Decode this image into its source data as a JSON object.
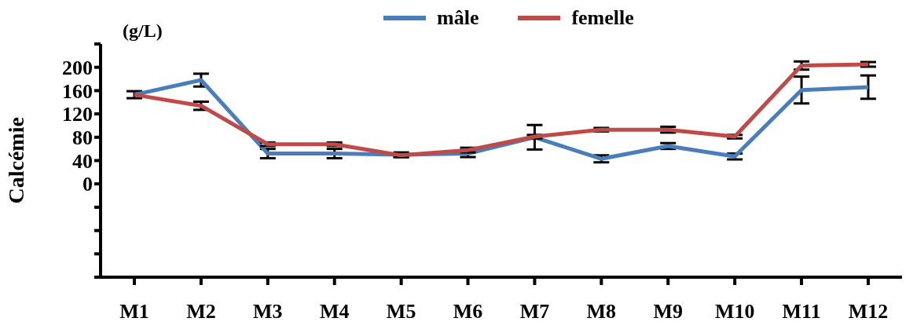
{
  "chart_data": {
    "type": "line",
    "ylabel": "Calcémie",
    "annotations": [
      "(g/L)"
    ],
    "categories": [
      "M1",
      "M2",
      "M3",
      "M4",
      "M5",
      "M6",
      "M7",
      "M8",
      "M9",
      "M10",
      "M11",
      "M12"
    ],
    "series": [
      {
        "name": "mâle",
        "color": "#4a7ebb",
        "values": [
          153,
          178,
          52,
          52,
          50,
          52,
          80,
          43,
          65,
          47,
          161,
          166
        ],
        "errors": [
          6,
          11,
          8,
          8,
          4,
          6,
          21,
          6,
          5,
          5,
          23,
          20
        ]
      },
      {
        "name": "femelle",
        "color": "#be4b48",
        "values": [
          153,
          134,
          68,
          68,
          49,
          58,
          81,
          93,
          93,
          81,
          203,
          205
        ],
        "errors": [
          null,
          7,
          3,
          3,
          3,
          4,
          3,
          3,
          5,
          3,
          7,
          4
        ]
      }
    ],
    "ylim": [
      -160,
      240
    ],
    "yticks": [
      {
        "value": -160,
        "label": null
      },
      {
        "value": -120,
        "label": null
      },
      {
        "value": -80,
        "label": null
      },
      {
        "value": -40,
        "label": null
      },
      0,
      40,
      80,
      120,
      160,
      200,
      {
        "value": 240,
        "label": null
      }
    ],
    "legend": "top",
    "grid": false,
    "marker": "none",
    "line_style": "solid"
  }
}
